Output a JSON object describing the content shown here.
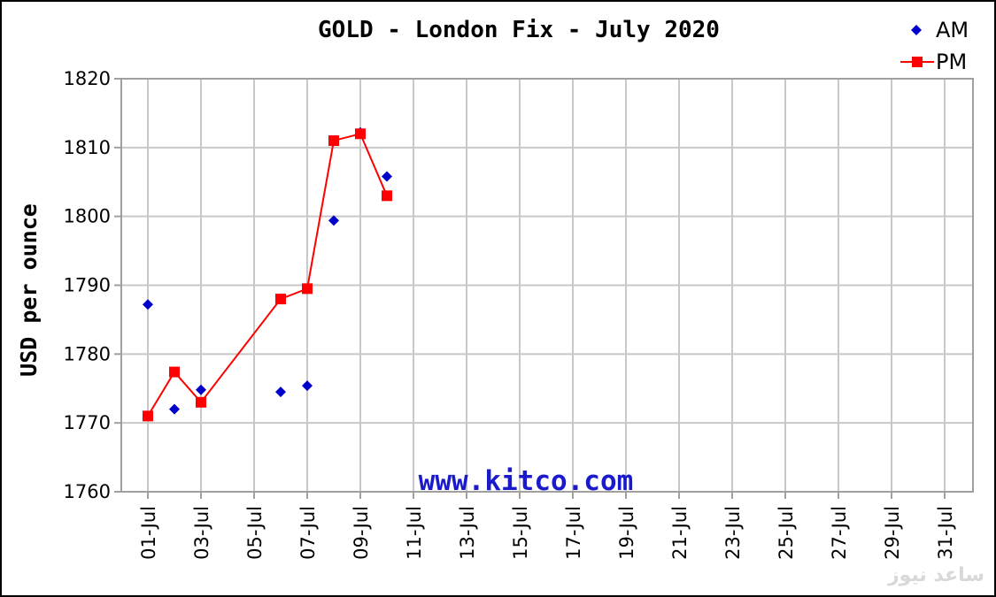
{
  "chart_data": {
    "type": "line",
    "title": "GOLD - London Fix - July 2020",
    "ylabel": "USD per ounce",
    "xlabel": "",
    "ylim": [
      1760,
      1820
    ],
    "yticks": [
      1760,
      1770,
      1780,
      1790,
      1800,
      1810,
      1820
    ],
    "x_tick_labels": [
      "01-Jul",
      "03-Jul",
      "05-Jul",
      "07-Jul",
      "09-Jul",
      "11-Jul",
      "13-Jul",
      "15-Jul",
      "17-Jul",
      "19-Jul",
      "21-Jul",
      "23-Jul",
      "25-Jul",
      "27-Jul",
      "29-Jul",
      "31-Jul"
    ],
    "x_day_range": [
      1,
      31
    ],
    "grid": true,
    "legend_position": "top-right",
    "series": [
      {
        "name": "AM",
        "style": "markers",
        "marker": "diamond",
        "color": "#0000cc",
        "points": [
          {
            "day": 1,
            "value": 1787.2
          },
          {
            "day": 2,
            "value": 1772.0
          },
          {
            "day": 3,
            "value": 1774.8
          },
          {
            "day": 6,
            "value": 1774.5
          },
          {
            "day": 7,
            "value": 1775.4
          },
          {
            "day": 8,
            "value": 1799.4
          },
          {
            "day": 9,
            "value": 1812.2
          },
          {
            "day": 10,
            "value": 1805.8
          }
        ]
      },
      {
        "name": "PM",
        "style": "line-markers",
        "marker": "square",
        "color": "#ff0000",
        "points": [
          {
            "day": 1,
            "value": 1771.0
          },
          {
            "day": 2,
            "value": 1777.4
          },
          {
            "day": 3,
            "value": 1773.0
          },
          {
            "day": 6,
            "value": 1788.0
          },
          {
            "day": 7,
            "value": 1789.5
          },
          {
            "day": 8,
            "value": 1811.0
          },
          {
            "day": 9,
            "value": 1812.0
          },
          {
            "day": 10,
            "value": 1803.0
          }
        ]
      }
    ],
    "watermark": "www.kitco.com"
  },
  "corner_logo_text": "ساعد نیوز"
}
